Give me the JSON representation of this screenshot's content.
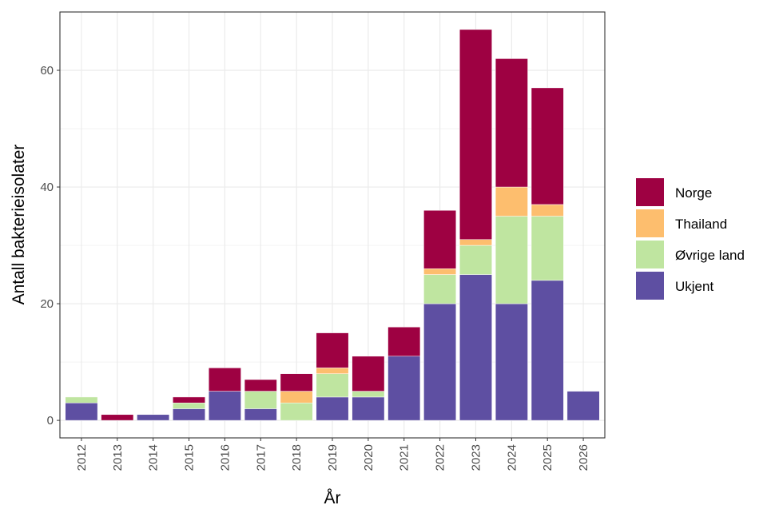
{
  "chart_data": {
    "type": "bar",
    "stacked": true,
    "xlabel": "År",
    "ylabel": "Antall bakterieisolater",
    "categories": [
      "2012",
      "2013",
      "2014",
      "2015",
      "2016",
      "2017",
      "2018",
      "2019",
      "2020",
      "2021",
      "2022",
      "2023",
      "2024",
      "2025",
      "2026"
    ],
    "ylim": [
      -3,
      70
    ],
    "yticks": [
      0,
      20,
      40,
      60
    ],
    "grid": true,
    "legend_position": "right",
    "series": [
      {
        "name": "Ukjent",
        "color": "#5E4FA2",
        "values": [
          3,
          0,
          1,
          2,
          5,
          2,
          0,
          4,
          4,
          11,
          20,
          25,
          20,
          24,
          5
        ]
      },
      {
        "name": "Øvrige land",
        "color": "#BFE5A0",
        "values": [
          1,
          0,
          0,
          1,
          0,
          3,
          3,
          4,
          1,
          0,
          5,
          5,
          15,
          11,
          0
        ]
      },
      {
        "name": "Thailand",
        "color": "#FDBE6E",
        "values": [
          0,
          0,
          0,
          0,
          0,
          0,
          2,
          1,
          0,
          0,
          1,
          1,
          5,
          2,
          0
        ]
      },
      {
        "name": "Norge",
        "color": "#9E0142",
        "values": [
          0,
          1,
          0,
          1,
          4,
          2,
          3,
          6,
          6,
          5,
          10,
          36,
          22,
          20,
          0
        ]
      }
    ],
    "legend_order": [
      "Norge",
      "Thailand",
      "Øvrige land",
      "Ukjent"
    ]
  }
}
